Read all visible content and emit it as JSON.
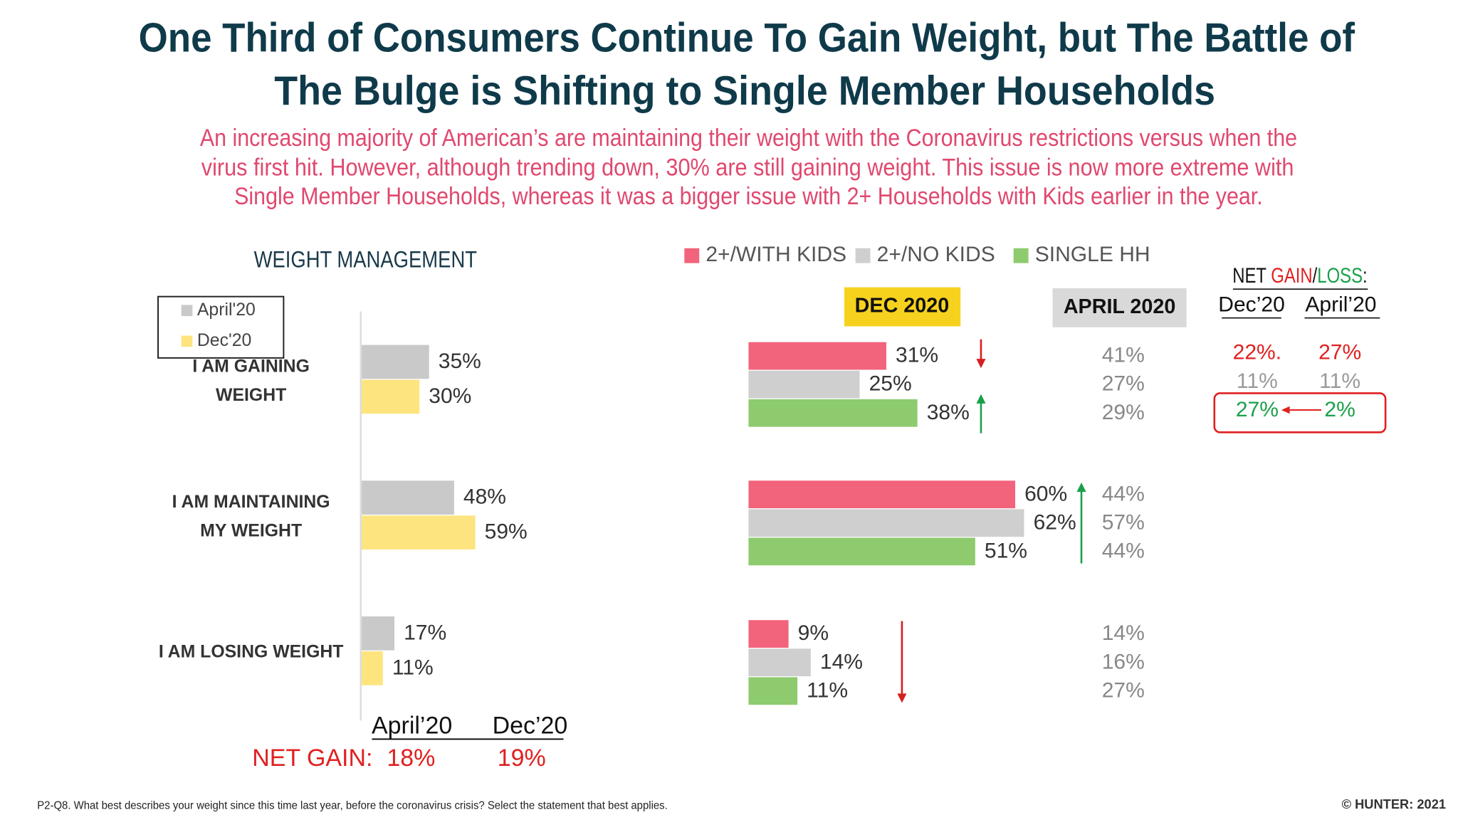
{
  "title": [
    "One Third of Consumers Continue To Gain Weight, but The Battle of",
    "The Bulge is Shifting to Single Member Households"
  ],
  "subtitle": [
    "An increasing majority of American’s are maintaining their weight with the Coronavirus restrictions versus when the",
    "virus first hit.  However, although trending down, 30% are still gaining weight. This issue is now more extreme with",
    "Single Member Households, whereas it was a bigger issue with 2+ Households with Kids earlier in the year."
  ],
  "chart_data": [
    {
      "type": "bar",
      "orientation": "horizontal",
      "title": "WEIGHT MANAGEMENT",
      "categories": [
        "I AM GAINING WEIGHT",
        "I AM MAINTAINING MY WEIGHT",
        "I AM LOSING WEIGHT"
      ],
      "series": [
        {
          "name": "April'20",
          "color": "#c9c9c9",
          "values": [
            35,
            48,
            17
          ],
          "value_labels": [
            "35%",
            "48%",
            "17%"
          ]
        },
        {
          "name": "Dec'20",
          "color": "#fde47f",
          "values": [
            30,
            59,
            11
          ],
          "value_labels": [
            "30%",
            "59%",
            "11%"
          ]
        }
      ]
    },
    {
      "type": "bar",
      "orientation": "horizontal",
      "title": "DEC 2020",
      "series": [
        {
          "name": "2+/WITH KIDS",
          "color": "#f2637c",
          "values": [
            31,
            60,
            9
          ],
          "value_labels": [
            "31%",
            "60%",
            "9%"
          ]
        },
        {
          "name": "2+/NO KIDS",
          "color": "#cfcfcf",
          "values": [
            25,
            62,
            14
          ],
          "value_labels": [
            "25%",
            "62%",
            "14%"
          ]
        },
        {
          "name": "SINGLE HH",
          "color": "#8ecb6e",
          "values": [
            38,
            51,
            11
          ],
          "value_labels": [
            "38%",
            "51%",
            "11%"
          ]
        }
      ]
    }
  ],
  "april_2020": {
    "title": "APRIL 2020",
    "rows": [
      [
        "41%",
        "27%",
        "29%"
      ],
      [
        "44%",
        "57%",
        "44%"
      ],
      [
        "14%",
        "16%",
        "27%"
      ]
    ]
  },
  "net_gain": {
    "columns": [
      "April’20",
      "Dec’20"
    ],
    "label": "NET  GAIN:",
    "values": [
      "18%",
      "19%"
    ]
  },
  "net_gain_loss": {
    "title_parts": [
      "NET ",
      "GAIN",
      "/",
      "LOSS",
      ":"
    ],
    "columns": [
      "Dec’20",
      "April’20"
    ],
    "rows": [
      [
        "22%.",
        "27%"
      ],
      [
        "11%",
        "11%"
      ],
      [
        "27%",
        "2%"
      ]
    ]
  },
  "footnote": "P2-Q8.  What best describes your weight since this time last year, before the coronavirus crisis? Select the statement that best applies.",
  "copyright": "© HUNTER: 2021"
}
